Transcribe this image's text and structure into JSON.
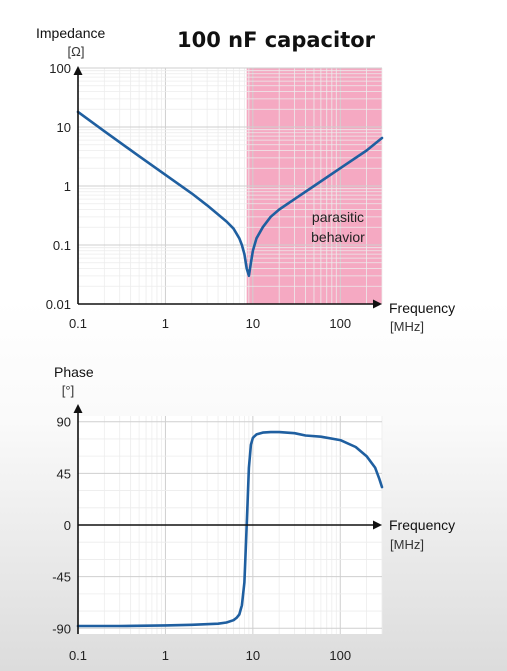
{
  "chart_data": [
    {
      "type": "line",
      "title": "100 nF capacitor",
      "ylabel": "Impedance",
      "yunit": "[Ω]",
      "xlabel": "Frequency",
      "xunit": "[MHz]",
      "xscale": "log",
      "yscale": "log",
      "xlim": [
        0.1,
        300
      ],
      "ylim": [
        0.01,
        100
      ],
      "xticks": [
        "0.1",
        "1",
        "10",
        "100"
      ],
      "yticks": [
        "0.01",
        "0.1",
        "1",
        "10",
        "100"
      ],
      "grid": true,
      "highlight": {
        "x_start": 8.5,
        "x_end": 300,
        "color": "#f5a9c2",
        "label_lines": [
          "parasitic",
          "behavior"
        ]
      },
      "line_color": "#1f5fa0",
      "series": [
        {
          "x": [
            0.1,
            0.2,
            0.5,
            1,
            2,
            3,
            5,
            6,
            7,
            7.5,
            8,
            8.5,
            9,
            9.5,
            10,
            11,
            13,
            16,
            20,
            30,
            50,
            100,
            200,
            300
          ],
          "y": [
            18,
            8.5,
            3.2,
            1.55,
            0.75,
            0.47,
            0.25,
            0.19,
            0.13,
            0.1,
            0.07,
            0.04,
            0.03,
            0.05,
            0.08,
            0.13,
            0.2,
            0.3,
            0.4,
            0.6,
            1.0,
            2.0,
            4.0,
            6.5
          ]
        }
      ]
    },
    {
      "type": "line",
      "ylabel": "Phase",
      "yunit": "[°]",
      "xlabel": "Frequency",
      "xunit": "[MHz]",
      "xscale": "log",
      "xlim": [
        0.1,
        300
      ],
      "ylim": [
        -95,
        95
      ],
      "xticks": [
        "0.1",
        "1",
        "10",
        "100"
      ],
      "yticks": [
        "90",
        "45",
        "0",
        "-45",
        "-90"
      ],
      "grid": true,
      "line_color": "#1f5fa0",
      "series": [
        {
          "x": [
            0.1,
            0.3,
            1,
            2,
            4,
            5,
            6,
            6.5,
            7,
            7.5,
            8,
            8.3,
            8.7,
            9,
            9.5,
            10,
            11,
            13,
            16,
            20,
            30,
            40,
            60,
            100,
            150,
            200,
            250,
            280,
            300
          ],
          "y": [
            -88,
            -88,
            -87.5,
            -87,
            -86,
            -85,
            -83,
            -81,
            -78,
            -70,
            -50,
            -20,
            20,
            50,
            70,
            76,
            79,
            80.5,
            81,
            81,
            80,
            78,
            77,
            74,
            68,
            60,
            50,
            40,
            33
          ]
        }
      ]
    }
  ]
}
